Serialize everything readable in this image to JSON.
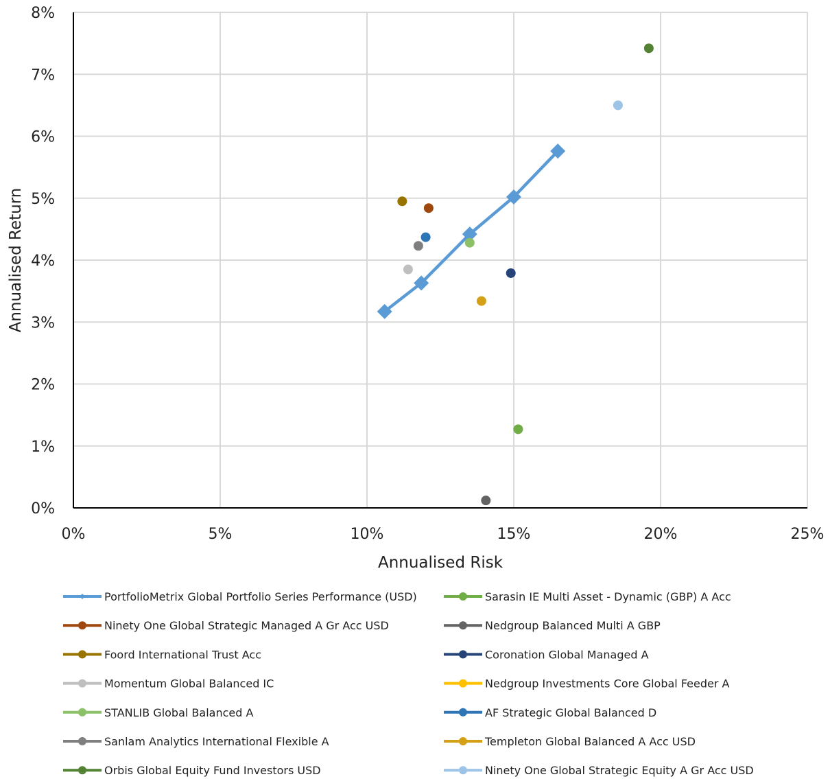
{
  "chart_data": {
    "type": "scatter",
    "xlabel": "Annualised Risk",
    "ylabel": "Annualised Return",
    "xlim": [
      0,
      25
    ],
    "ylim": [
      0,
      8
    ],
    "x_ticks": [
      "0%",
      "5%",
      "10%",
      "15%",
      "20%",
      "25%"
    ],
    "y_ticks": [
      "0%",
      "1%",
      "2%",
      "3%",
      "4%",
      "5%",
      "6%",
      "7%",
      "8%"
    ],
    "grid": true,
    "legend_position": "bottom",
    "series": [
      {
        "name": "PortfolioMetrix Global Portfolio Series Performance (USD)",
        "color": "#5b9bd5",
        "marker": "diamond",
        "line": true,
        "points": [
          [
            10.6,
            3.17
          ],
          [
            11.85,
            3.63
          ],
          [
            13.5,
            4.42
          ],
          [
            15.0,
            5.02
          ],
          [
            16.5,
            5.76
          ]
        ]
      },
      {
        "name": "Sarasin IE Multi Asset - Dynamic (GBP) A Acc",
        "color": "#70ad47",
        "marker": "circle",
        "points": [
          [
            15.15,
            1.27
          ]
        ]
      },
      {
        "name": "Ninety One Global Strategic Managed A Gr Acc USD",
        "color": "#9e480e",
        "marker": "circle",
        "points": [
          [
            12.1,
            4.84
          ]
        ]
      },
      {
        "name": "Nedgroup Balanced Multi A GBP",
        "color": "#636363",
        "marker": "circle",
        "points": [
          [
            14.05,
            0.12
          ]
        ]
      },
      {
        "name": "Foord International Trust Acc",
        "color": "#997300",
        "marker": "circle",
        "points": [
          [
            11.2,
            4.95
          ]
        ]
      },
      {
        "name": "Coronation Global Managed A",
        "color": "#264478",
        "marker": "circle",
        "points": [
          [
            14.9,
            3.79
          ]
        ]
      },
      {
        "name": "Momentum Global Balanced IC",
        "color": "#bfbfbf",
        "marker": "circle",
        "points": [
          [
            11.4,
            3.85
          ]
        ]
      },
      {
        "name": "Nedgroup Investments Core Global Feeder A",
        "color": "#ffc000",
        "marker": "circle",
        "points": []
      },
      {
        "name": "STANLIB Global Balanced A",
        "color": "#8cc168",
        "marker": "circle",
        "points": [
          [
            13.5,
            4.28
          ]
        ]
      },
      {
        "name": "AF Strategic Global Balanced D",
        "color": "#2e75b6",
        "marker": "circle",
        "points": [
          [
            12.0,
            4.37
          ]
        ]
      },
      {
        "name": "Sanlam Analytics International Flexible A",
        "color": "#7f7f7f",
        "marker": "circle",
        "points": [
          [
            11.75,
            4.23
          ]
        ]
      },
      {
        "name": "Templeton Global Balanced A Acc USD",
        "color": "#d4a017",
        "marker": "circle",
        "points": [
          [
            13.9,
            3.34
          ]
        ]
      },
      {
        "name": "Orbis Global Equity Fund Investors USD",
        "color": "#548235",
        "marker": "circle",
        "points": [
          [
            19.6,
            7.42
          ]
        ]
      },
      {
        "name": "Ninety One Global Strategic Equity A Gr Acc USD",
        "color": "#9dc3e6",
        "marker": "circle",
        "points": [
          [
            18.55,
            6.5
          ]
        ]
      }
    ]
  }
}
